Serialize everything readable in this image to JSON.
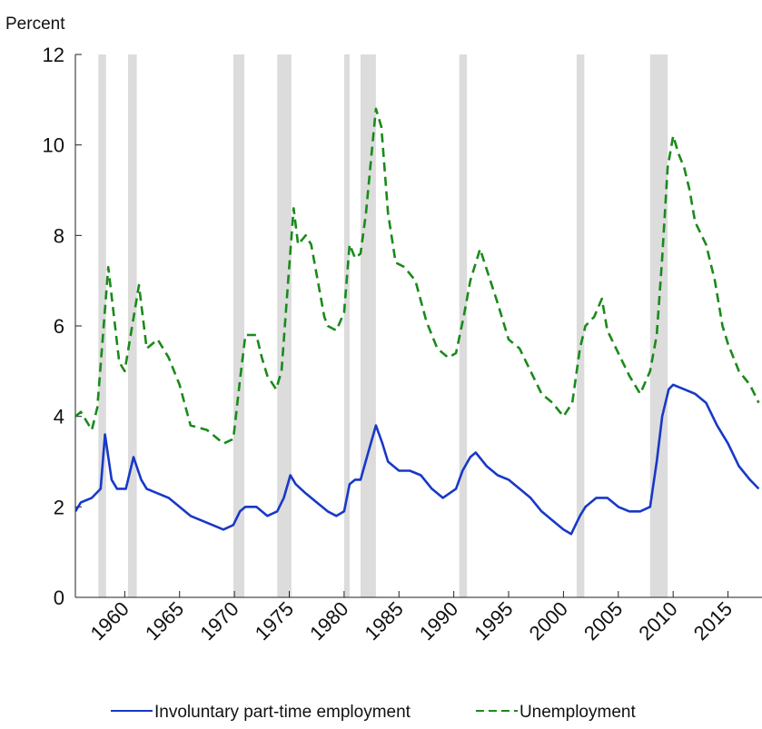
{
  "chart_data": {
    "type": "line",
    "y_label": "Percent",
    "xlim": [
      1955.5,
      2018.1
    ],
    "ylim": [
      0,
      12
    ],
    "xticks": [
      1960,
      1965,
      1970,
      1975,
      1980,
      1985,
      1990,
      1995,
      2000,
      2005,
      2010,
      2015
    ],
    "yticks": [
      0,
      2,
      4,
      6,
      8,
      10,
      12
    ],
    "recessions": [
      [
        1957.6,
        1958.3
      ],
      [
        1960.3,
        1961.1
      ],
      [
        1969.9,
        1970.9
      ],
      [
        1973.9,
        1975.2
      ],
      [
        1980.0,
        1980.5
      ],
      [
        1981.5,
        1982.9
      ],
      [
        1990.5,
        1991.2
      ],
      [
        2001.2,
        2001.9
      ],
      [
        2007.9,
        2009.5
      ]
    ],
    "recession_color": "#dcdcdc",
    "series": [
      {
        "name": "Involuntary part-time employment",
        "color": "#1838c8",
        "dash": false,
        "x": [
          1955.5,
          1956,
          1957,
          1957.8,
          1958.2,
          1958.8,
          1959.3,
          1960.1,
          1960.8,
          1961.5,
          1962,
          1963,
          1964,
          1965,
          1966,
          1967,
          1968,
          1969,
          1969.9,
          1970.5,
          1971,
          1972,
          1973,
          1973.9,
          1974.5,
          1975.1,
          1975.6,
          1976.5,
          1977.5,
          1978.5,
          1979.3,
          1980,
          1980.5,
          1981,
          1981.5,
          1982.2,
          1982.9,
          1983.5,
          1984,
          1985,
          1986,
          1987,
          1988,
          1989,
          1990.2,
          1990.8,
          1991.5,
          1992,
          1993,
          1994,
          1995,
          1996,
          1997,
          1998,
          1999,
          2000,
          2000.7,
          2001.5,
          2002,
          2003,
          2004,
          2005,
          2006,
          2007,
          2007.9,
          2008.5,
          2009,
          2009.6,
          2010,
          2011,
          2012,
          2013,
          2014,
          2015,
          2016,
          2017,
          2017.8
        ],
        "values": [
          1.9,
          2.1,
          2.2,
          2.4,
          3.6,
          2.6,
          2.4,
          2.4,
          3.1,
          2.6,
          2.4,
          2.3,
          2.2,
          2.0,
          1.8,
          1.7,
          1.6,
          1.5,
          1.6,
          1.9,
          2.0,
          2.0,
          1.8,
          1.9,
          2.2,
          2.7,
          2.5,
          2.3,
          2.1,
          1.9,
          1.8,
          1.9,
          2.5,
          2.6,
          2.6,
          3.2,
          3.8,
          3.4,
          3.0,
          2.8,
          2.8,
          2.7,
          2.4,
          2.2,
          2.4,
          2.8,
          3.1,
          3.2,
          2.9,
          2.7,
          2.6,
          2.4,
          2.2,
          1.9,
          1.7,
          1.5,
          1.4,
          1.8,
          2.0,
          2.2,
          2.2,
          2.0,
          1.9,
          1.9,
          2.0,
          3.0,
          4.0,
          4.6,
          4.7,
          4.6,
          4.5,
          4.3,
          3.8,
          3.4,
          2.9,
          2.6,
          2.4
        ]
      },
      {
        "name": "Unemployment",
        "color": "#1a8a1a",
        "dash": true,
        "x": [
          1955.5,
          1956,
          1957,
          1957.5,
          1958.5,
          1959.5,
          1960,
          1961.3,
          1962,
          1963,
          1964,
          1965,
          1966,
          1967.5,
          1969,
          1969.9,
          1970.5,
          1971,
          1972,
          1972.5,
          1973,
          1973.8,
          1974.3,
          1974.9,
          1975.4,
          1975.8,
          1976.5,
          1977,
          1977.6,
          1978.2,
          1978.5,
          1979.3,
          1980,
          1980.5,
          1981,
          1981.5,
          1982,
          1982.5,
          1982.9,
          1983.4,
          1984,
          1984.7,
          1985.5,
          1986.5,
          1987.5,
          1988.5,
          1989.5,
          1990.2,
          1990.9,
          1991.5,
          1992.4,
          1993.2,
          1994,
          1995,
          1996,
          1997,
          1998,
          1999,
          2000,
          2000.8,
          2001.5,
          2002,
          2002.8,
          2003.5,
          2004,
          2005,
          2006,
          2007,
          2007.9,
          2008.5,
          2009,
          2009.5,
          2010,
          2010.5,
          2011,
          2011.5,
          2012,
          2013,
          2013.8,
          2014.5,
          2015,
          2016,
          2017,
          2017.8
        ],
        "values": [
          4.0,
          4.1,
          3.7,
          4.2,
          7.3,
          5.2,
          5.0,
          6.9,
          5.5,
          5.7,
          5.3,
          4.7,
          3.8,
          3.7,
          3.4,
          3.5,
          4.8,
          5.8,
          5.8,
          5.3,
          4.9,
          4.6,
          5.0,
          7.0,
          8.6,
          7.8,
          8.0,
          7.8,
          7.0,
          6.2,
          6.0,
          5.9,
          6.3,
          7.8,
          7.5,
          7.6,
          8.5,
          9.8,
          10.8,
          10.4,
          8.5,
          7.4,
          7.3,
          7.0,
          6.1,
          5.5,
          5.3,
          5.4,
          6.2,
          7.0,
          7.7,
          7.1,
          6.5,
          5.7,
          5.5,
          5.0,
          4.5,
          4.3,
          4.0,
          4.3,
          5.5,
          6.0,
          6.2,
          6.6,
          5.9,
          5.4,
          4.9,
          4.5,
          5.0,
          5.8,
          7.5,
          9.5,
          10.2,
          9.8,
          9.5,
          9.0,
          8.3,
          7.8,
          7.0,
          6.0,
          5.6,
          5.0,
          4.7,
          4.3
        ]
      }
    ]
  }
}
